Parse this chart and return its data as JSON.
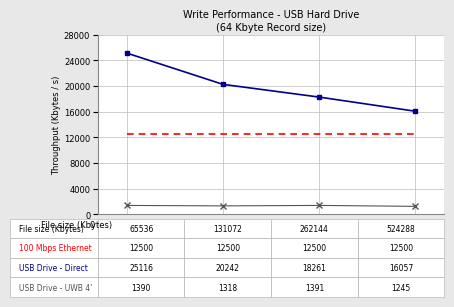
{
  "title_line1": "Write Performance - USB Hard Drive",
  "title_line2": "(64 Kbyte Record size)",
  "xlabel": "File size (Kbytes)",
  "ylabel": "Throughput (Kbytes / s)",
  "x_values": [
    65536,
    131072,
    262144,
    524288
  ],
  "x_labels": [
    "65536",
    "131072",
    "262144",
    "524288"
  ],
  "series": [
    {
      "label": "100 Mbps Ethernet",
      "values": [
        12500,
        12500,
        12500,
        12500
      ],
      "color": "#ff0000",
      "linestyle": "dotted",
      "marker": null,
      "linewidth": 1.2,
      "zorder": 2
    },
    {
      "label": "USB Drive - Direct",
      "values": [
        25116,
        20242,
        18261,
        16057
      ],
      "color": "#00008B",
      "linestyle": "solid",
      "marker": "s",
      "markersize": 3.5,
      "linewidth": 1.2,
      "zorder": 3
    },
    {
      "label": "USB Drive - UWB 4'",
      "values": [
        1390,
        1318,
        1391,
        1245
      ],
      "color": "#555555",
      "linestyle": "solid",
      "marker": "x",
      "markersize": 4,
      "linewidth": 0.8,
      "zorder": 2
    }
  ],
  "ylim": [
    0,
    28000
  ],
  "yticks": [
    0,
    4000,
    8000,
    12000,
    16000,
    20000,
    24000,
    28000
  ],
  "table_data": [
    [
      "65536",
      "131072",
      "262144",
      "524288"
    ],
    [
      "12500",
      "12500",
      "12500",
      "12500"
    ],
    [
      "25116",
      "20242",
      "18261",
      "16057"
    ],
    [
      "1390",
      "1318",
      "1391",
      "1245"
    ]
  ],
  "row_labels": [
    "File size (Kbytes)   0",
    "- - - 100 Mbps Ethernet",
    "—■—USB Drive - Direct",
    "—x—USB Drive - UWB 4'"
  ],
  "row_label_colors": [
    "#000000",
    "#ff0000",
    "#00008B",
    "#555555"
  ],
  "background_color": "#e8e8e8",
  "plot_bg_color": "#ffffff",
  "title_fontsize": 7,
  "label_fontsize": 6,
  "tick_fontsize": 6,
  "table_fontsize": 5.5
}
